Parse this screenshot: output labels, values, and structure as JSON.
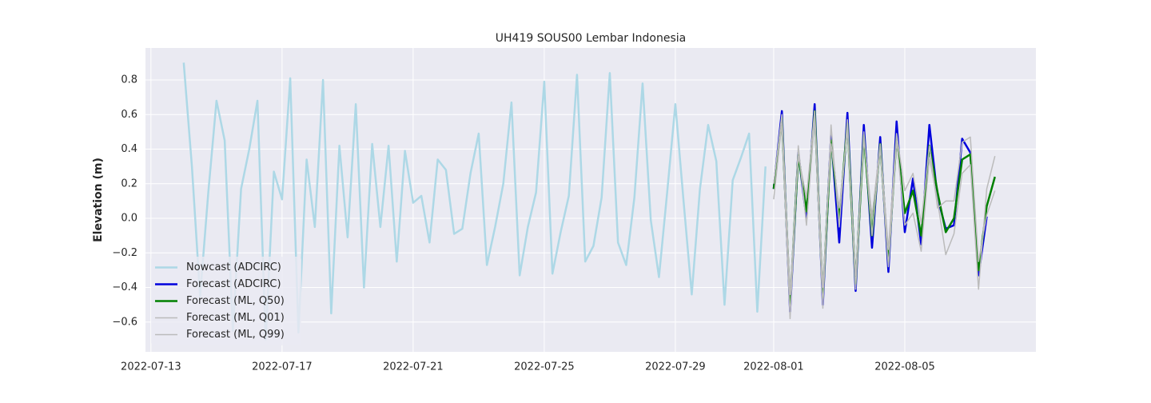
{
  "chart_data": {
    "type": "line",
    "title": "UH419 SOUS00 Lembar Indonesia",
    "y_label": "Elevation (m)",
    "xlim": [
      "2022-07-12T20:00",
      "2022-08-09T00:00"
    ],
    "xticks": [
      "2022-07-13",
      "2022-07-17",
      "2022-07-21",
      "2022-07-25",
      "2022-07-29",
      "2022-08-01",
      "2022-08-05"
    ],
    "ylim": [
      -0.772,
      0.985
    ],
    "yticks": [
      {
        "value": -0.6,
        "label": "−0.6"
      },
      {
        "value": -0.4,
        "label": "−0.4"
      },
      {
        "value": -0.2,
        "label": "−0.2"
      },
      {
        "value": 0,
        "label": "0.0"
      },
      0.2,
      0.4,
      0.6,
      0.8
    ],
    "grid": true,
    "legend": "lower left",
    "series": [
      {
        "name": "Nowcast (ADCIRC)",
        "color": "#add8e6",
        "width": 2.5,
        "x": [
          "2022-07-14T00:00",
          "2022-07-14T06:00",
          "2022-07-14T12:00",
          "2022-07-14T18:00",
          "2022-07-15T00:00",
          "2022-07-15T06:00",
          "2022-07-15T12:00",
          "2022-07-15T18:00",
          "2022-07-16T00:00",
          "2022-07-16T06:00",
          "2022-07-16T12:00",
          "2022-07-16T18:00",
          "2022-07-17T00:00",
          "2022-07-17T06:00",
          "2022-07-17T12:00",
          "2022-07-17T18:00",
          "2022-07-18T00:00",
          "2022-07-18T06:00",
          "2022-07-18T12:00",
          "2022-07-18T18:00",
          "2022-07-19T00:00",
          "2022-07-19T06:00",
          "2022-07-19T12:00",
          "2022-07-19T18:00",
          "2022-07-20T00:00",
          "2022-07-20T06:00",
          "2022-07-20T12:00",
          "2022-07-20T18:00",
          "2022-07-21T00:00",
          "2022-07-21T06:00",
          "2022-07-21T12:00",
          "2022-07-21T18:00",
          "2022-07-22T00:00",
          "2022-07-22T06:00",
          "2022-07-22T12:00",
          "2022-07-22T18:00",
          "2022-07-23T00:00",
          "2022-07-23T06:00",
          "2022-07-23T12:00",
          "2022-07-23T18:00",
          "2022-07-24T00:00",
          "2022-07-24T06:00",
          "2022-07-24T12:00",
          "2022-07-24T18:00",
          "2022-07-25T00:00",
          "2022-07-25T06:00",
          "2022-07-25T12:00",
          "2022-07-25T18:00",
          "2022-07-26T00:00",
          "2022-07-26T06:00",
          "2022-07-26T12:00",
          "2022-07-26T18:00",
          "2022-07-27T00:00",
          "2022-07-27T06:00",
          "2022-07-27T12:00",
          "2022-07-27T18:00",
          "2022-07-28T00:00",
          "2022-07-28T06:00",
          "2022-07-28T12:00",
          "2022-07-28T18:00",
          "2022-07-29T00:00",
          "2022-07-29T06:00",
          "2022-07-29T12:00",
          "2022-07-29T18:00",
          "2022-07-30T00:00",
          "2022-07-30T06:00",
          "2022-07-30T12:00",
          "2022-07-30T18:00",
          "2022-07-31T00:00",
          "2022-07-31T06:00",
          "2022-07-31T12:00",
          "2022-07-31T18:00"
        ],
        "values": [
          0.9,
          0.3,
          -0.45,
          0.15,
          0.68,
          0.45,
          -0.65,
          0.17,
          0.4,
          0.68,
          -0.7,
          0.27,
          0.11,
          0.81,
          -0.66,
          0.34,
          -0.05,
          0.8,
          -0.55,
          0.42,
          -0.11,
          0.66,
          -0.4,
          0.43,
          -0.05,
          0.42,
          -0.25,
          0.39,
          0.09,
          0.13,
          -0.14,
          0.34,
          0.28,
          -0.09,
          -0.06,
          0.26,
          0.49,
          -0.27,
          -0.05,
          0.2,
          0.67,
          -0.33,
          -0.05,
          0.15,
          0.79,
          -0.32,
          -0.08,
          0.13,
          0.83,
          -0.25,
          -0.16,
          0.12,
          0.84,
          -0.14,
          -0.27,
          0.12,
          0.78,
          -0.01,
          -0.34,
          0.15,
          0.66,
          0.1,
          -0.44,
          0.17,
          0.54,
          0.33,
          -0.5,
          0.22,
          0.35,
          0.49,
          -0.54,
          0.3
        ]
      },
      {
        "name": "Forecast (ADCIRC)",
        "color": "#0000dd",
        "width": 2.5,
        "x": [
          "2022-08-01T00:00",
          "2022-08-01T06:00",
          "2022-08-01T12:00",
          "2022-08-01T18:00",
          "2022-08-02T00:00",
          "2022-08-02T06:00",
          "2022-08-02T12:00",
          "2022-08-02T18:00",
          "2022-08-03T00:00",
          "2022-08-03T06:00",
          "2022-08-03T12:00",
          "2022-08-03T18:00",
          "2022-08-04T00:00",
          "2022-08-04T06:00",
          "2022-08-04T12:00",
          "2022-08-04T18:00",
          "2022-08-05T00:00",
          "2022-08-05T06:00",
          "2022-08-05T12:00",
          "2022-08-05T18:00",
          "2022-08-06T00:00",
          "2022-08-06T06:00",
          "2022-08-06T12:00",
          "2022-08-06T18:00",
          "2022-08-07T00:00",
          "2022-08-07T06:00",
          "2022-08-07T12:00"
        ],
        "values": [
          0.17,
          0.62,
          -0.54,
          0.38,
          0.0,
          0.66,
          -0.5,
          0.48,
          -0.14,
          0.61,
          -0.42,
          0.54,
          -0.17,
          0.47,
          -0.31,
          0.56,
          -0.08,
          0.23,
          -0.15,
          0.54,
          0.12,
          -0.06,
          -0.04,
          0.46,
          0.38,
          -0.33,
          0.01
        ]
      },
      {
        "name": "Forecast (ML, Q50)",
        "color": "#008000",
        "width": 2.5,
        "x": [
          "2022-08-01T00:00",
          "2022-08-01T06:00",
          "2022-08-01T12:00",
          "2022-08-01T18:00",
          "2022-08-02T00:00",
          "2022-08-02T06:00",
          "2022-08-02T12:00",
          "2022-08-02T18:00",
          "2022-08-03T00:00",
          "2022-08-03T06:00",
          "2022-08-03T12:00",
          "2022-08-03T18:00",
          "2022-08-04T00:00",
          "2022-08-04T06:00",
          "2022-08-04T12:00",
          "2022-08-04T18:00",
          "2022-08-05T00:00",
          "2022-08-05T06:00",
          "2022-08-05T12:00",
          "2022-08-05T18:00",
          "2022-08-06T00:00",
          "2022-08-06T06:00",
          "2022-08-06T12:00",
          "2022-08-06T18:00",
          "2022-08-07T00:00",
          "2022-08-07T06:00",
          "2022-08-07T12:00",
          "2022-08-07T18:00"
        ],
        "values": [
          0.17,
          0.58,
          -0.5,
          0.37,
          0.04,
          0.62,
          -0.46,
          0.45,
          0.0,
          0.55,
          -0.38,
          0.48,
          -0.1,
          0.43,
          -0.25,
          0.47,
          0.03,
          0.16,
          -0.1,
          0.42,
          0.15,
          -0.08,
          0.0,
          0.34,
          0.37,
          -0.3,
          0.07,
          0.24
        ]
      },
      {
        "name": "Forecast (ML, Q01)",
        "color": "#bbbbbb",
        "width": 1.5,
        "x": [
          "2022-08-01T00:00",
          "2022-08-01T06:00",
          "2022-08-01T12:00",
          "2022-08-01T18:00",
          "2022-08-02T00:00",
          "2022-08-02T06:00",
          "2022-08-02T12:00",
          "2022-08-02T18:00",
          "2022-08-03T00:00",
          "2022-08-03T06:00",
          "2022-08-03T12:00",
          "2022-08-03T18:00",
          "2022-08-04T00:00",
          "2022-08-04T06:00",
          "2022-08-04T12:00",
          "2022-08-04T18:00",
          "2022-08-05T00:00",
          "2022-08-05T06:00",
          "2022-08-05T12:00",
          "2022-08-05T18:00",
          "2022-08-06T00:00",
          "2022-08-06T06:00",
          "2022-08-06T12:00",
          "2022-08-06T18:00",
          "2022-08-07T00:00",
          "2022-08-07T06:00",
          "2022-08-07T12:00",
          "2022-08-07T18:00"
        ],
        "values": [
          0.11,
          0.55,
          -0.58,
          0.42,
          -0.04,
          0.58,
          -0.52,
          0.54,
          -0.05,
          0.57,
          -0.41,
          0.5,
          -0.1,
          0.41,
          -0.28,
          0.45,
          -0.04,
          0.03,
          -0.19,
          0.35,
          0.1,
          -0.21,
          -0.09,
          0.26,
          0.31,
          -0.41,
          0.17,
          0.36
        ]
      },
      {
        "name": "Forecast (ML, Q99)",
        "color": "#bbbbbb",
        "width": 1.5,
        "x": [
          "2022-08-01T00:00",
          "2022-08-01T06:00",
          "2022-08-01T12:00",
          "2022-08-01T18:00",
          "2022-08-02T00:00",
          "2022-08-02T06:00",
          "2022-08-02T12:00",
          "2022-08-02T18:00",
          "2022-08-03T00:00",
          "2022-08-03T06:00",
          "2022-08-03T12:00",
          "2022-08-03T18:00",
          "2022-08-04T00:00",
          "2022-08-04T06:00",
          "2022-08-04T12:00",
          "2022-08-04T18:00",
          "2022-08-05T00:00",
          "2022-08-05T06:00",
          "2022-08-05T12:00",
          "2022-08-05T18:00",
          "2022-08-06T00:00",
          "2022-08-06T06:00",
          "2022-08-06T12:00",
          "2022-08-06T18:00",
          "2022-08-07T00:00",
          "2022-08-07T06:00",
          "2022-08-07T12:00",
          "2022-08-07T18:00"
        ],
        "values": [
          0.2,
          0.6,
          -0.44,
          0.36,
          0.12,
          0.62,
          -0.4,
          0.43,
          0.06,
          0.51,
          -0.33,
          0.46,
          0.01,
          0.43,
          -0.18,
          0.49,
          0.16,
          0.26,
          -0.03,
          0.42,
          0.06,
          0.1,
          0.1,
          0.44,
          0.47,
          -0.25,
          0.02,
          0.16
        ]
      }
    ]
  }
}
